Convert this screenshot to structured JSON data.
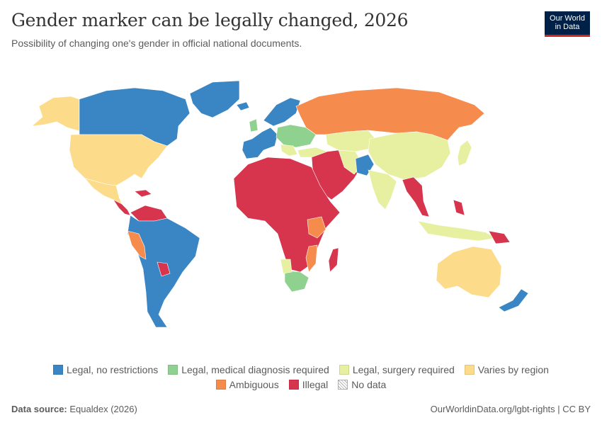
{
  "header": {
    "title": "Gender marker can be legally changed, 2026",
    "subtitle": "Possibility of changing one's gender in official national documents."
  },
  "logo": {
    "line1": "Our World",
    "line2": "in Data"
  },
  "colors": {
    "legal_no_restrictions": "#3a86c4",
    "legal_medical": "#8fd18e",
    "legal_surgery": "#e6f0a0",
    "varies": "#fcdc8a",
    "ambiguous": "#f58c4e",
    "illegal": "#d7344d",
    "no_data": "#e0e0e0"
  },
  "legend": {
    "row1": [
      {
        "label": "Legal, no restrictions",
        "color_key": "legal_no_restrictions"
      },
      {
        "label": "Legal, medical diagnosis required",
        "color_key": "legal_medical"
      },
      {
        "label": "Legal, surgery required",
        "color_key": "legal_surgery"
      },
      {
        "label": "Varies by region",
        "color_key": "varies"
      }
    ],
    "row2": [
      {
        "label": "Ambiguous",
        "color_key": "ambiguous"
      },
      {
        "label": "Illegal",
        "color_key": "illegal"
      },
      {
        "label": "No data",
        "color_key": "no_data"
      }
    ]
  },
  "footer": {
    "source_label": "Data source:",
    "source_value": "Equaldex (2026)",
    "credit": "OurWorldinData.org/lgbt-rights | CC BY"
  }
}
